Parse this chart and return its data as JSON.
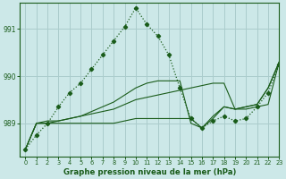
{
  "bg_color": "#cce8e8",
  "grid_color": "#aacccc",
  "line_color": "#1a5c1a",
  "title": "Graphe pression niveau de la mer (hPa)",
  "xlim": [
    -0.5,
    23
  ],
  "ylim": [
    988.3,
    991.55
  ],
  "yticks": [
    989,
    990,
    991
  ],
  "xticks": [
    0,
    1,
    2,
    3,
    4,
    5,
    6,
    7,
    8,
    9,
    10,
    11,
    12,
    13,
    14,
    15,
    16,
    17,
    18,
    19,
    20,
    21,
    22,
    23
  ],
  "series_dotted": [
    988.45,
    988.75,
    989.0,
    989.35,
    989.65,
    989.85,
    990.15,
    990.45,
    990.75,
    991.05,
    991.45,
    991.1,
    990.85,
    990.45,
    989.75,
    989.1,
    988.9,
    989.05,
    989.15,
    989.05,
    989.1,
    989.35,
    989.65,
    990.25
  ],
  "series_line1": [
    988.45,
    989.0,
    989.05,
    989.05,
    989.1,
    989.15,
    989.2,
    989.25,
    989.3,
    989.4,
    989.5,
    989.55,
    989.6,
    989.65,
    989.7,
    989.75,
    989.8,
    989.85,
    989.85,
    989.3,
    989.3,
    989.35,
    989.4,
    990.3
  ],
  "series_line2": [
    988.45,
    989.0,
    989.0,
    989.05,
    989.1,
    989.15,
    989.25,
    989.35,
    989.45,
    989.6,
    989.75,
    989.85,
    989.9,
    989.9,
    989.9,
    989.0,
    988.9,
    989.15,
    989.35,
    989.3,
    989.35,
    989.4,
    989.75,
    990.3
  ],
  "series_line3": [
    988.45,
    989.0,
    989.0,
    989.0,
    989.0,
    989.0,
    989.0,
    989.0,
    989.0,
    989.05,
    989.1,
    989.1,
    989.1,
    989.1,
    989.1,
    989.1,
    988.9,
    989.1,
    989.35,
    989.3,
    989.35,
    989.4,
    989.75,
    990.3
  ]
}
